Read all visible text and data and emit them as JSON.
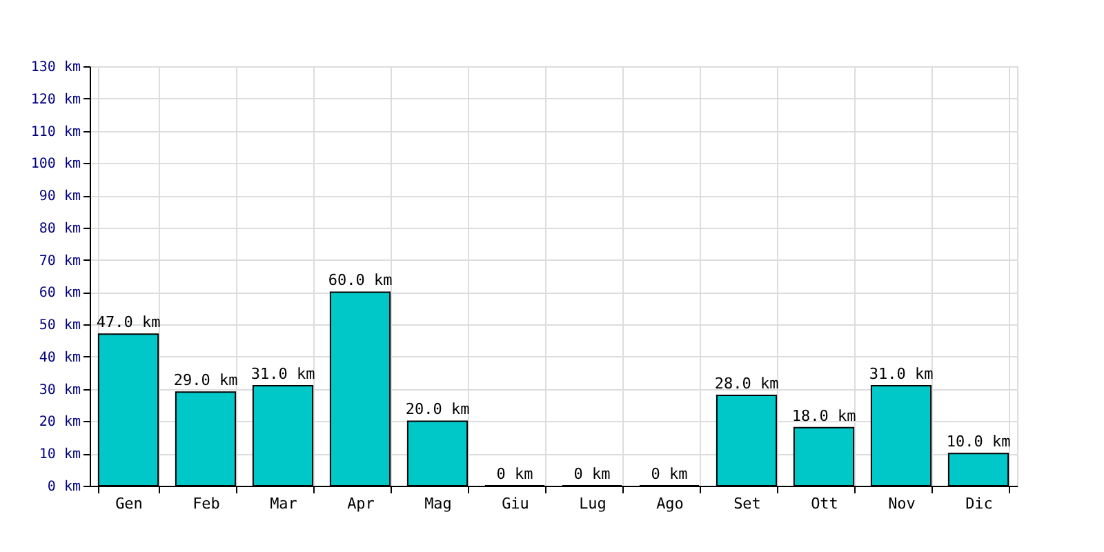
{
  "chart_data": {
    "type": "bar",
    "categories": [
      "Gen",
      "Feb",
      "Mar",
      "Apr",
      "Mag",
      "Giu",
      "Lug",
      "Ago",
      "Set",
      "Ott",
      "Nov",
      "Dic"
    ],
    "values": [
      47,
      29,
      31,
      60,
      20,
      0,
      0,
      0,
      28,
      18,
      31,
      10
    ],
    "value_labels": [
      "47.0 km",
      "29.0 km",
      "31.0 km",
      "60.0 km",
      "20.0 km",
      "0 km",
      "0 km",
      "0 km",
      "28.0 km",
      "18.0 km",
      "31.0 km",
      "10.0 km"
    ],
    "color": "#00c8c8",
    "ylim": [
      0,
      130
    ],
    "yticks": [
      {
        "value": 0,
        "label": "0 km"
      },
      {
        "value": 10,
        "label": "10 km"
      },
      {
        "value": 20,
        "label": "20 km"
      },
      {
        "value": 30,
        "label": "30 km"
      },
      {
        "value": 40,
        "label": "40 km"
      },
      {
        "value": 50,
        "label": "50 km"
      },
      {
        "value": 60,
        "label": "60 km"
      },
      {
        "value": 70,
        "label": "70 km"
      },
      {
        "value": 80,
        "label": "80 km"
      },
      {
        "value": 90,
        "label": "90 km"
      },
      {
        "value": 100,
        "label": "100 km"
      },
      {
        "value": 110,
        "label": "110 km"
      },
      {
        "value": 120,
        "label": "120 km"
      },
      {
        "value": 130,
        "label": "130 km"
      }
    ],
    "grid": true
  }
}
